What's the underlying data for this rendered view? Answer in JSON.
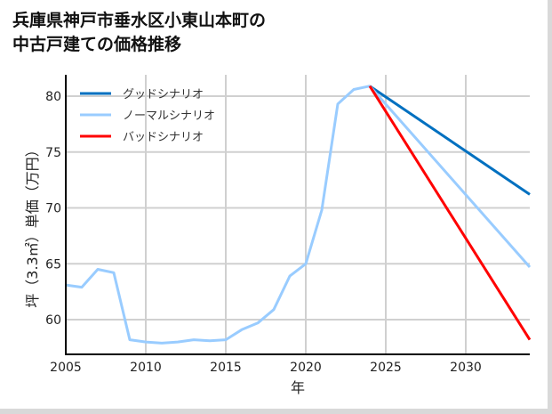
{
  "title_line1": "兵庫県神戸市垂水区小東山本町の",
  "title_line2": "中古戸建ての価格推移",
  "chart_data": {
    "type": "line",
    "title": "兵庫県神戸市垂水区小東山本町の中古戸建ての価格推移",
    "xlabel": "年",
    "ylabel": "坪（3.3㎡）単価（万円）",
    "xlim": [
      2005,
      2034
    ],
    "ylim": [
      56.9,
      82
    ],
    "xticks": [
      2005,
      2010,
      2015,
      2020,
      2025,
      2030
    ],
    "yticks": [
      60,
      65,
      70,
      75,
      80
    ],
    "grid": true,
    "legend_position": "upper left",
    "series": [
      {
        "name": "グッドシナリオ",
        "color": "#0070c0",
        "x": [
          2024,
          2034
        ],
        "values": [
          80.9,
          71.2
        ]
      },
      {
        "name": "ノーマルシナリオ",
        "color": "#99ccff",
        "x": [
          2005,
          2006,
          2007,
          2008,
          2009,
          2010,
          2011,
          2012,
          2013,
          2014,
          2015,
          2016,
          2017,
          2018,
          2019,
          2020,
          2021,
          2022,
          2023,
          2024,
          2034
        ],
        "values": [
          63.1,
          62.9,
          64.5,
          64.2,
          58.2,
          58.0,
          57.9,
          58.0,
          58.2,
          58.1,
          58.2,
          59.1,
          59.7,
          60.9,
          63.9,
          65.0,
          69.8,
          79.3,
          80.6,
          80.9,
          64.7
        ]
      },
      {
        "name": "バッドシナリオ",
        "color": "#ff0000",
        "x": [
          2024,
          2034
        ],
        "values": [
          80.9,
          58.2
        ]
      }
    ]
  }
}
